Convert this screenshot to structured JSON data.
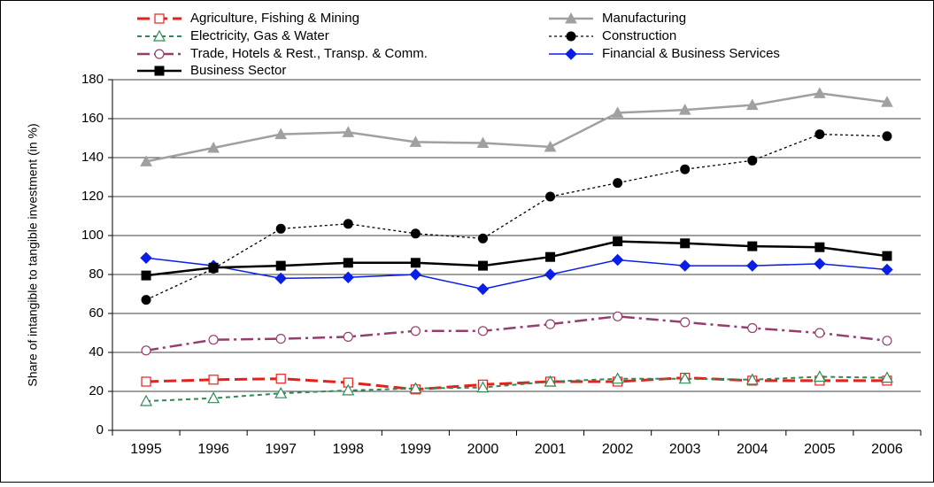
{
  "chart_data": {
    "type": "line",
    "y_label": "Share of intangible to tangible investment (in %)",
    "categories": [
      "1995",
      "1996",
      "1997",
      "1998",
      "1999",
      "2000",
      "2001",
      "2002",
      "2003",
      "2004",
      "2005",
      "2006"
    ],
    "ylim": [
      0,
      180
    ],
    "yticks": [
      0,
      20,
      40,
      60,
      80,
      100,
      120,
      140,
      160,
      180
    ],
    "grid": true,
    "legend": "top",
    "series": [
      {
        "name": "Agriculture, Fishing & Mining",
        "color": "#e8201c",
        "marker": "square-open",
        "dash": "14,6",
        "width": 3,
        "values": [
          25,
          26,
          26.5,
          24.5,
          21,
          23.5,
          25,
          25,
          27,
          25.5,
          25.5,
          25.5
        ]
      },
      {
        "name": "Manufacturing",
        "color": "#a0a0a0",
        "marker": "triangle",
        "dash": "none",
        "width": 2.5,
        "values": [
          138,
          145,
          152,
          153,
          148,
          147.5,
          145.5,
          163,
          164.5,
          167,
          173,
          168.5
        ]
      },
      {
        "name": "Electricity, Gas & Water",
        "color": "#2e8b57",
        "marker": "triangle-open",
        "dash": "5,4",
        "width": 2,
        "values": [
          15,
          16.5,
          19,
          20.5,
          21.5,
          22,
          25,
          26.5,
          26.5,
          26,
          27.5,
          27
        ]
      },
      {
        "name": "Construction",
        "color": "#000000",
        "marker": "circle",
        "dash": "3,3",
        "width": 1.3,
        "values": [
          67,
          83,
          103.5,
          106,
          101,
          98.5,
          120,
          127,
          134,
          138.5,
          152,
          151
        ]
      },
      {
        "name": "Trade, Hotels & Rest., Transp. & Comm.",
        "color": "#953d6e",
        "marker": "circle-open",
        "dash": "14,5,3,5",
        "width": 2.5,
        "values": [
          41,
          46.5,
          47,
          48,
          51,
          51,
          54.5,
          58.5,
          55.5,
          52.5,
          50,
          46
        ]
      },
      {
        "name": "Financial & Business Services",
        "color": "#0a1ee6",
        "marker": "diamond",
        "dash": "none",
        "width": 1.5,
        "values": [
          88.5,
          84.5,
          78,
          78.5,
          80,
          72.5,
          80,
          87.5,
          84.5,
          84.5,
          85.5,
          82.5
        ]
      },
      {
        "name": "Business Sector",
        "color": "#000000",
        "marker": "square",
        "dash": "none",
        "width": 2.5,
        "values": [
          79.5,
          83.5,
          84.5,
          86,
          86,
          84.5,
          89,
          97,
          96,
          94.5,
          94,
          89.5
        ]
      }
    ]
  }
}
